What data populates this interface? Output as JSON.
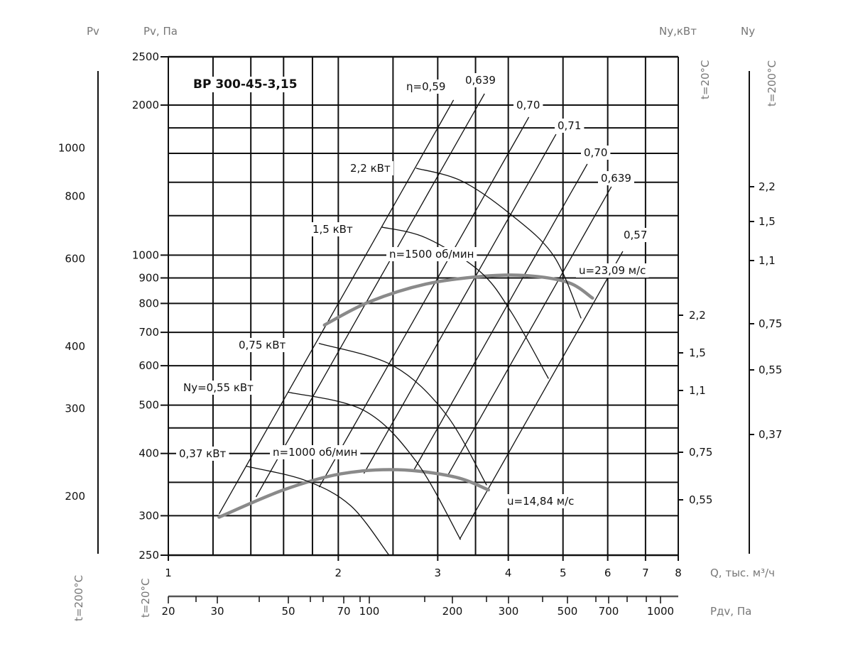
{
  "chart_data": {
    "type": "line",
    "title": "ВР 300-45-3,15",
    "x_axis": {
      "label": "Q, тыс. м³/ч",
      "scale": "log",
      "range": [
        1,
        8
      ],
      "ticks": [
        "1",
        "2",
        "3",
        "4",
        "5",
        "6",
        "7",
        "8"
      ],
      "grid": [
        1,
        1.2,
        1.4,
        1.6,
        1.8,
        2,
        2.5,
        3,
        3.5,
        4,
        5,
        6,
        7,
        8
      ]
    },
    "x_axis_secondary": {
      "label": "Pдv, Па",
      "temperature": "t=20°C",
      "temperature_alt": "t=200°C",
      "ticks": [
        "20",
        "30",
        "50",
        "70",
        "100",
        "200",
        "300",
        "500",
        "700",
        "1000"
      ]
    },
    "y_axis": {
      "label": "Pv, Па",
      "scale": "log",
      "range": [
        250,
        2500
      ],
      "ticks": [
        "2500",
        "2000",
        "1000",
        "900",
        "800",
        "700",
        "600",
        "500",
        "400",
        "300",
        "250"
      ],
      "grid": [
        250,
        300,
        350,
        400,
        450,
        500,
        600,
        700,
        800,
        900,
        1000,
        1200,
        1400,
        1600,
        1800,
        2000,
        2500
      ]
    },
    "y_axis_200C": {
      "label": "Pv",
      "ticks": [
        "1000",
        "800",
        "600",
        "400",
        "300",
        "200"
      ]
    },
    "power_axis_20C": {
      "label": "Nу,кВт",
      "temperature": "t=20°C",
      "ticks": [
        "2,2",
        "1,5",
        "1,1",
        "0,75",
        "0,55"
      ]
    },
    "power_axis_200C": {
      "label": "Nу",
      "temperature": "t=200°C",
      "ticks": [
        "2,2",
        "1,5",
        "1,1",
        "0,75",
        "0,55",
        "0,37"
      ]
    },
    "grid": true,
    "series": [
      {
        "name": "n=1000 об/мин",
        "tip_speed": "u=14,84 м/с",
        "kind": "fan",
        "x": [
          1.23,
          1.6,
          2.02,
          2.55,
          3.21,
          3.69
        ],
        "y": [
          298,
          338,
          364,
          371,
          359,
          338
        ]
      },
      {
        "name": "n=1500 об/мин",
        "tip_speed": "u=23,09 м/с",
        "kind": "fan",
        "x": [
          1.89,
          2.27,
          2.86,
          3.61,
          4.3,
          5.11,
          5.64
        ],
        "y": [
          724,
          806,
          875,
          907,
          910,
          881,
          820
        ]
      },
      {
        "name": "2,2 кВт",
        "kind": "power",
        "x": [
          2.75,
          3.31,
          4.04,
          4.81,
          5.38
        ],
        "y": [
          1494,
          1408,
          1207,
          998,
          748
        ]
      },
      {
        "name": "1,5 кВт",
        "kind": "power",
        "x": [
          2.39,
          2.86,
          3.56,
          4.05,
          4.71
        ],
        "y": [
          1138,
          1083,
          928,
          768,
          566
        ]
      },
      {
        "name": "0,75 кВт",
        "kind": "power",
        "x": [
          1.85,
          2.5,
          3.1,
          3.66
        ],
        "y": [
          665,
          600,
          480,
          346
        ]
      },
      {
        "name": "Nу=0,55 кВт",
        "kind": "power",
        "x": [
          1.63,
          2.22,
          2.75,
          3.29
        ],
        "y": [
          531,
          488,
          385,
          269
        ]
      },
      {
        "name": "0,37 кВт",
        "kind": "power",
        "x": [
          1.375,
          1.75,
          2.105,
          2.454
        ],
        "y": [
          377,
          353,
          314,
          251
        ]
      }
    ],
    "efficiency_lines": [
      {
        "label": "η=0,59",
        "k": 200,
        "q": [
          1.23,
          3.2
        ]
      },
      {
        "label": "0,639",
        "k": 160,
        "q": [
          1.43,
          3.63
        ]
      },
      {
        "label": "0,70",
        "k": 100,
        "q": [
          1.85,
          4.35
        ]
      },
      {
        "label": "0,71",
        "k": 74,
        "q": [
          2.22,
          4.86
        ]
      },
      {
        "label": "0,70",
        "k": 50,
        "q": [
          2.72,
          5.52
        ]
      },
      {
        "label": "0,639",
        "k": 37,
        "q": [
          3.12,
          6.09
        ]
      },
      {
        "label": "0,57",
        "k": 25,
        "q": [
          3.28,
          6.38
        ]
      }
    ],
    "colors": {
      "grid": "#111111",
      "fan_curve": "#8a8a8a",
      "axis_title": "#777777"
    }
  }
}
